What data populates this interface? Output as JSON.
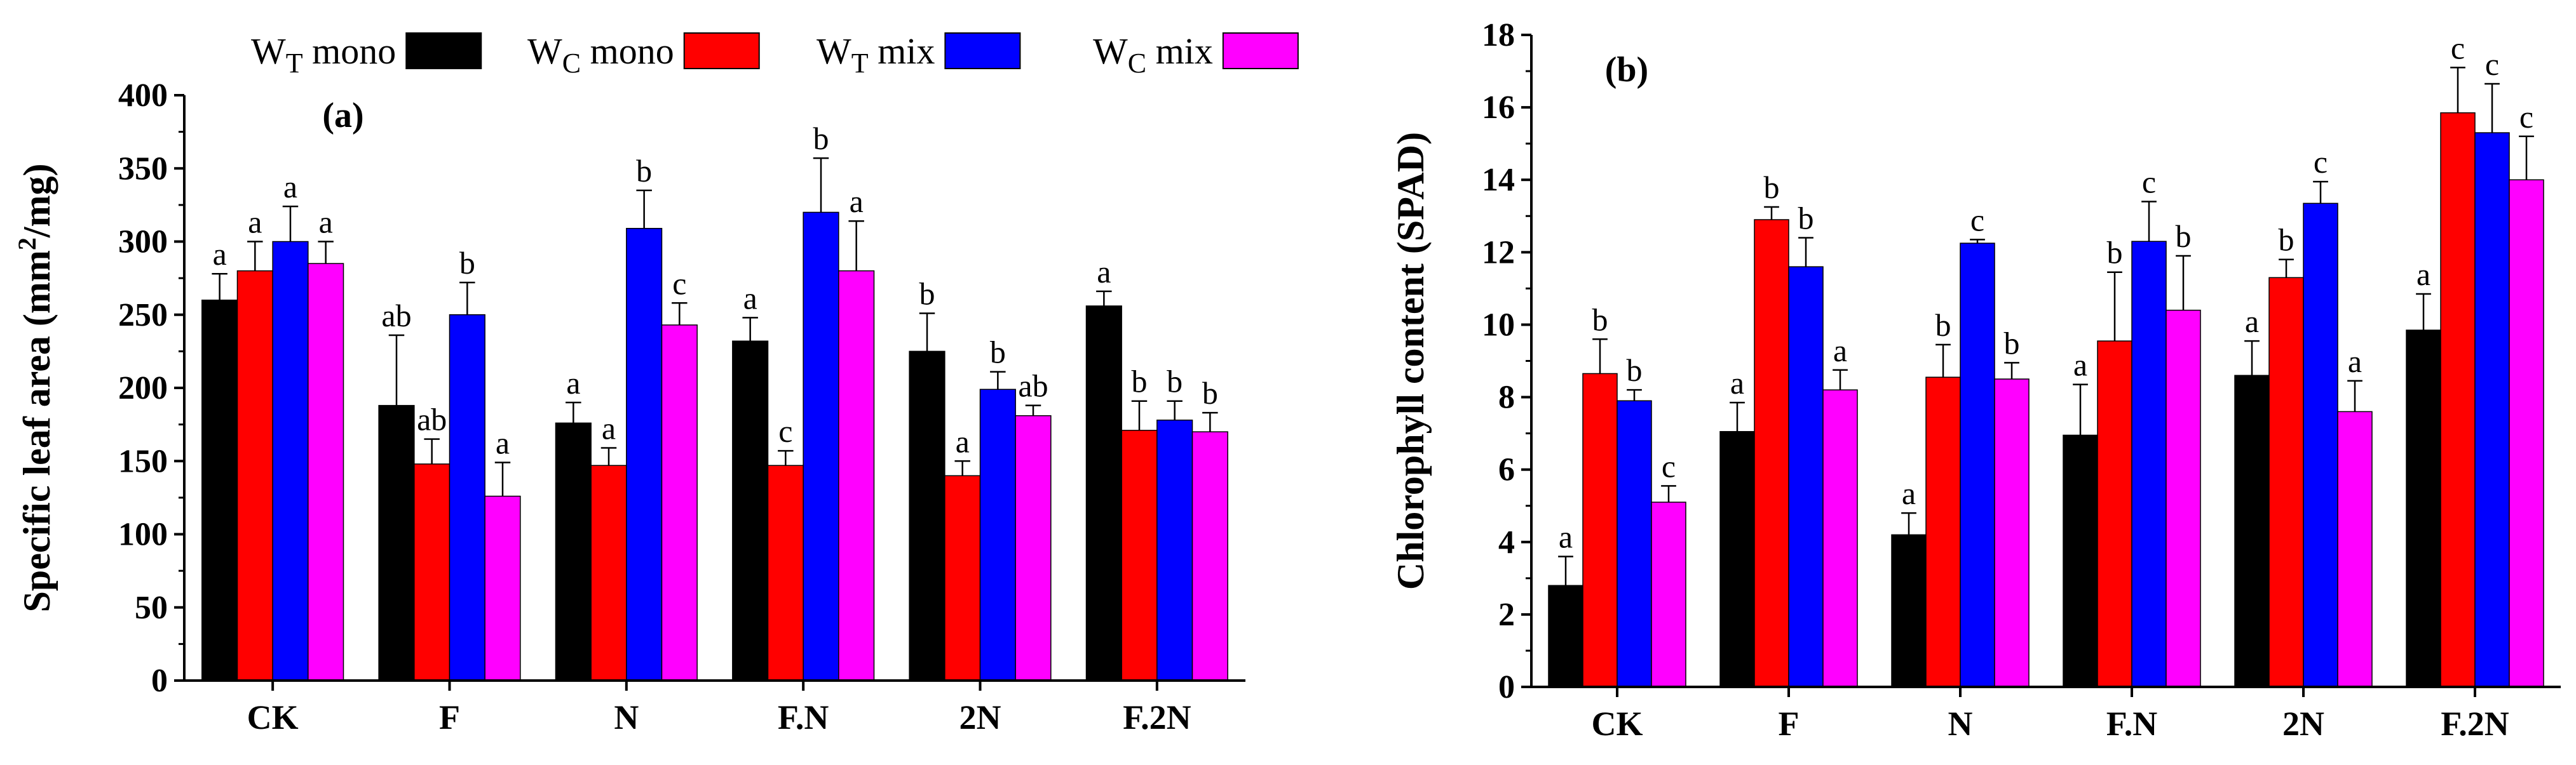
{
  "legend": {
    "items": [
      {
        "main": "W",
        "sub": "T",
        "rest": " mono",
        "color": "#000000"
      },
      {
        "main": "W",
        "sub": "C",
        "rest": " mono",
        "color": "#ff0000"
      },
      {
        "main": "W",
        "sub": "T",
        "rest": " mix",
        "color": "#0000ff"
      },
      {
        "main": "W",
        "sub": "C",
        "rest": " mix",
        "color": "#ff00ff"
      }
    ]
  },
  "chart_data": [
    {
      "type": "bar",
      "panel_label": "(a)",
      "ylabel": {
        "main": "Specific leaf area (mm",
        "sup": "2",
        "rest": "/mg)"
      },
      "xlabel": "",
      "categories": [
        "CK",
        "F",
        "N",
        "F.N",
        "2N",
        "F.2N"
      ],
      "ylim": [
        0,
        400
      ],
      "yticks": [
        0,
        50,
        100,
        150,
        200,
        250,
        300,
        350,
        400
      ],
      "grid": false,
      "series": [
        {
          "name": "WT mono",
          "color": "#000000",
          "values": [
            260,
            188,
            176,
            232,
            225,
            256
          ],
          "errors": [
            18,
            48,
            14,
            16,
            26,
            10
          ],
          "letters": [
            "a",
            "ab",
            "a",
            "a",
            "b",
            "a"
          ]
        },
        {
          "name": "WC mono",
          "color": "#ff0000",
          "values": [
            280,
            148,
            147,
            147,
            140,
            171
          ],
          "errors": [
            20,
            17,
            12,
            10,
            10,
            20
          ],
          "letters": [
            "a",
            "ab",
            "a",
            "c",
            "a",
            "b"
          ]
        },
        {
          "name": "WT mix",
          "color": "#0000ff",
          "values": [
            300,
            250,
            309,
            320,
            199,
            178
          ],
          "errors": [
            24,
            22,
            26,
            37,
            12,
            13
          ],
          "letters": [
            "a",
            "b",
            "b",
            "b",
            "b",
            "b"
          ]
        },
        {
          "name": "WC mix",
          "color": "#ff00ff",
          "values": [
            285,
            126,
            243,
            280,
            181,
            170
          ],
          "errors": [
            15,
            23,
            15,
            34,
            7,
            13
          ],
          "letters": [
            "a",
            "a",
            "c",
            "a",
            "ab",
            "b"
          ]
        }
      ]
    },
    {
      "type": "bar",
      "panel_label": "(b)",
      "ylabel": {
        "main": "Chlorophyll content (SPAD)"
      },
      "xlabel": "",
      "categories": [
        "CK",
        "F",
        "N",
        "F.N",
        "2N",
        "F.2N"
      ],
      "ylim": [
        0,
        18
      ],
      "yticks": [
        0,
        2,
        4,
        6,
        8,
        10,
        12,
        14,
        16,
        18
      ],
      "grid": false,
      "series": [
        {
          "name": "WT mono",
          "color": "#000000",
          "values": [
            2.8,
            7.05,
            4.2,
            6.95,
            8.6,
            9.85
          ],
          "errors": [
            0.8,
            0.8,
            0.6,
            1.4,
            0.95,
            1.0
          ],
          "letters": [
            "a",
            "a",
            "a",
            "a",
            "a",
            "a"
          ]
        },
        {
          "name": "WC mono",
          "color": "#ff0000",
          "values": [
            8.65,
            12.9,
            8.55,
            9.55,
            11.3,
            15.85
          ],
          "errors": [
            0.95,
            0.35,
            0.9,
            1.9,
            0.5,
            1.25
          ],
          "letters": [
            "b",
            "b",
            "b",
            "b",
            "b",
            "c"
          ]
        },
        {
          "name": "WT mix",
          "color": "#0000ff",
          "values": [
            7.9,
            11.6,
            12.25,
            12.3,
            13.35,
            15.3
          ],
          "errors": [
            0.3,
            0.8,
            0.1,
            1.1,
            0.6,
            1.35
          ],
          "letters": [
            "b",
            "b",
            "c",
            "c",
            "c",
            "c"
          ]
        },
        {
          "name": "WC mix",
          "color": "#ff00ff",
          "values": [
            5.1,
            8.2,
            8.5,
            10.4,
            7.6,
            14.0
          ],
          "errors": [
            0.45,
            0.55,
            0.45,
            1.5,
            0.85,
            1.2
          ],
          "letters": [
            "c",
            "a",
            "b",
            "b",
            "a",
            "c"
          ]
        }
      ]
    }
  ]
}
